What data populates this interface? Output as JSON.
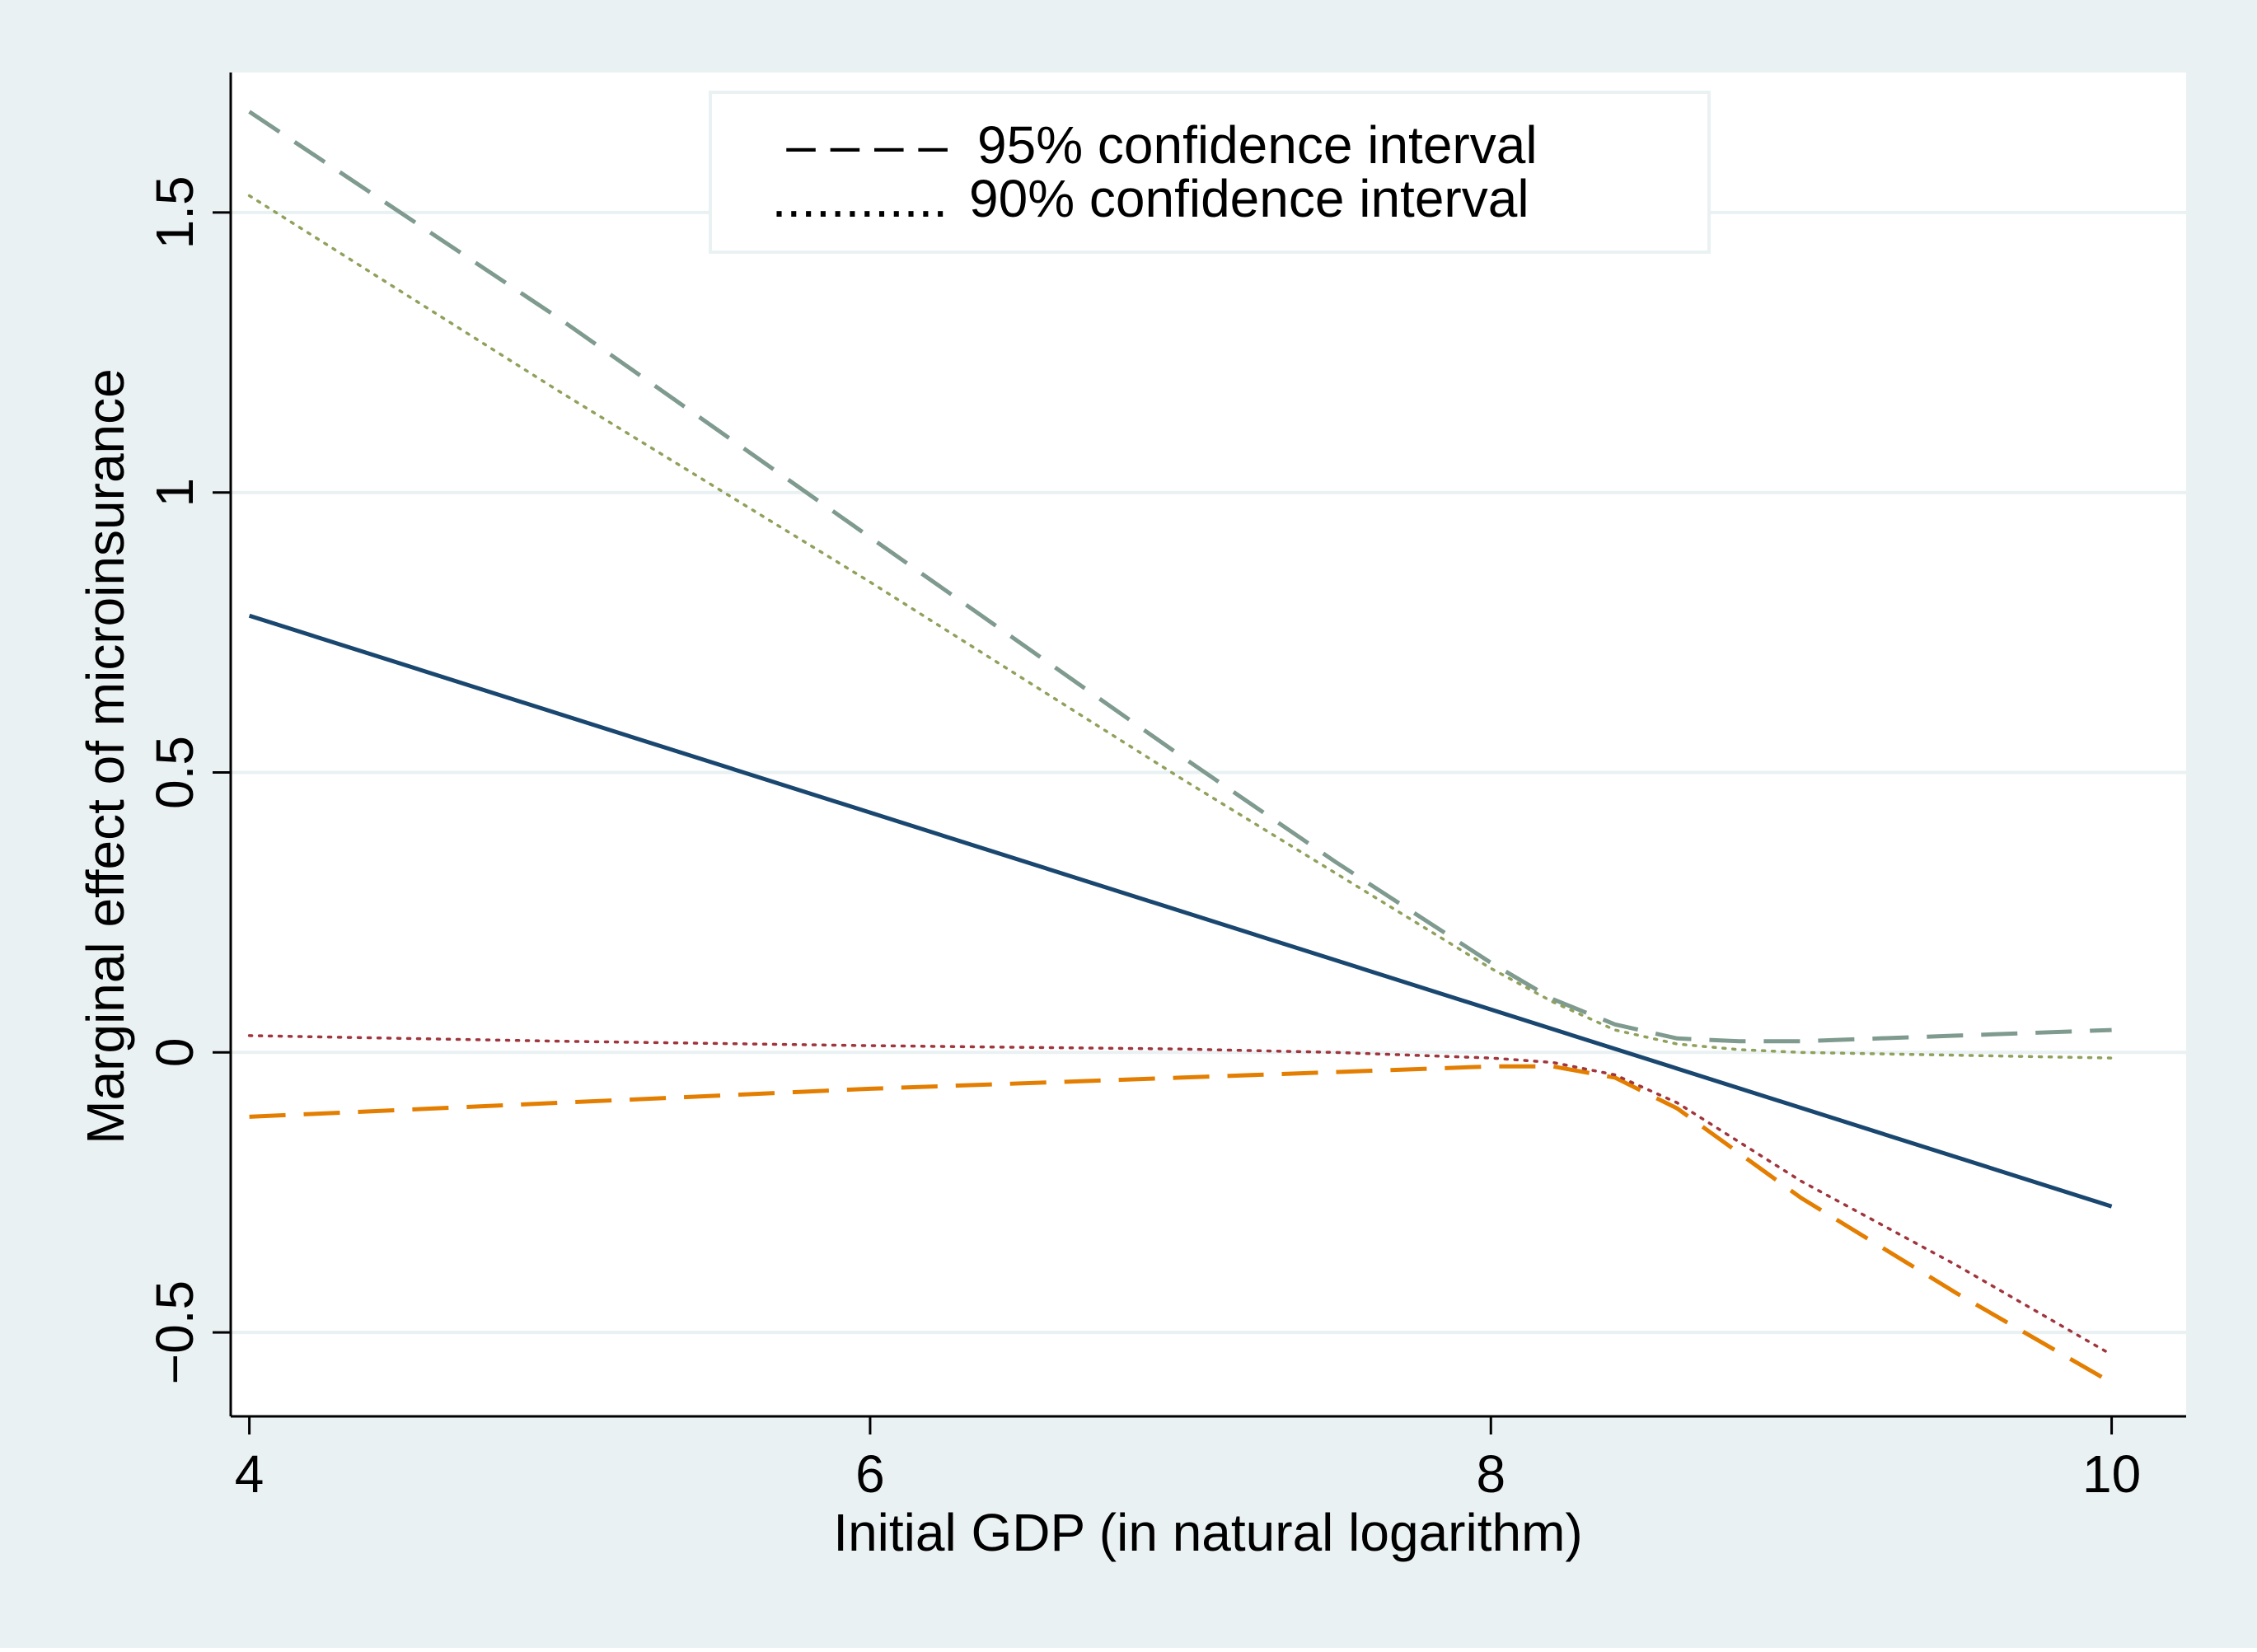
{
  "chart_data": {
    "type": "line",
    "title": "",
    "xlabel": "Initial GDP (in natural logarithm)",
    "ylabel": "Marginal effect of microinsurance",
    "xlim": [
      3.94,
      10.24
    ],
    "ylim": [
      -0.65,
      1.75
    ],
    "xticks": [
      4,
      6,
      8,
      10
    ],
    "yticks": [
      -0.5,
      0,
      0.5,
      1,
      1.5
    ],
    "xtick_labels": [
      "4",
      "6",
      "8",
      "10"
    ],
    "ytick_labels": [
      "−0.5",
      "0",
      "0.5",
      "1",
      "1.5"
    ],
    "grid": true,
    "legend_position": "top-center",
    "legend": [
      {
        "symbol": "– – – –",
        "label": "95% confidence interval",
        "style": "dashed"
      },
      {
        "symbol": "............",
        "label": "90% confidence interval",
        "style": "dotted"
      }
    ],
    "colors": {
      "outer_background": "#eaf1f3",
      "plot_background": "#ffffff",
      "grid": "#eaf1f3",
      "marginal_effect": "#1a476f",
      "ci95_upper": "#7f9a8e",
      "ci95_lower": "#e37e00",
      "ci90_upper": "#90a15c",
      "ci90_lower": "#a0363d"
    },
    "series": [
      {
        "name": "Marginal effect",
        "style": "solid",
        "color": "#1a476f",
        "x": [
          4,
          10
        ],
        "y": [
          0.78,
          -0.275
        ]
      },
      {
        "name": "95% CI upper",
        "style": "dashed",
        "color": "#7f9a8e",
        "x": [
          4,
          5,
          6,
          7,
          7.5,
          8,
          8.2,
          8.4,
          8.6,
          8.8,
          9.0,
          9.5,
          10
        ],
        "y": [
          1.68,
          1.31,
          0.92,
          0.53,
          0.34,
          0.16,
          0.095,
          0.05,
          0.025,
          0.02,
          0.02,
          0.03,
          0.04
        ]
      },
      {
        "name": "95% CI lower",
        "style": "dashed",
        "color": "#e37e00",
        "x": [
          4,
          5,
          6,
          7,
          7.5,
          8,
          8.2,
          8.4,
          8.6,
          8.8,
          9.0,
          9.5,
          10
        ],
        "y": [
          -0.115,
          -0.09,
          -0.065,
          -0.045,
          -0.035,
          -0.025,
          -0.025,
          -0.045,
          -0.1,
          -0.18,
          -0.26,
          -0.43,
          -0.59
        ]
      },
      {
        "name": "90% CI upper",
        "style": "dotted",
        "color": "#90a15c",
        "x": [
          4,
          5,
          6,
          7,
          7.5,
          8,
          8.2,
          8.4,
          8.6,
          8.8,
          9.0,
          9.5,
          10
        ],
        "y": [
          1.53,
          1.18,
          0.84,
          0.49,
          0.32,
          0.15,
          0.09,
          0.04,
          0.015,
          0.005,
          0.0,
          -0.005,
          -0.01
        ]
      },
      {
        "name": "90% CI lower",
        "style": "dotted",
        "color": "#a0363d",
        "x": [
          4,
          5,
          6,
          7,
          7.5,
          8,
          8.2,
          8.4,
          8.6,
          8.8,
          9.0,
          9.5,
          10
        ],
        "y": [
          0.03,
          0.02,
          0.012,
          0.006,
          0.0,
          -0.01,
          -0.018,
          -0.04,
          -0.09,
          -0.16,
          -0.23,
          -0.38,
          -0.54
        ]
      }
    ]
  }
}
